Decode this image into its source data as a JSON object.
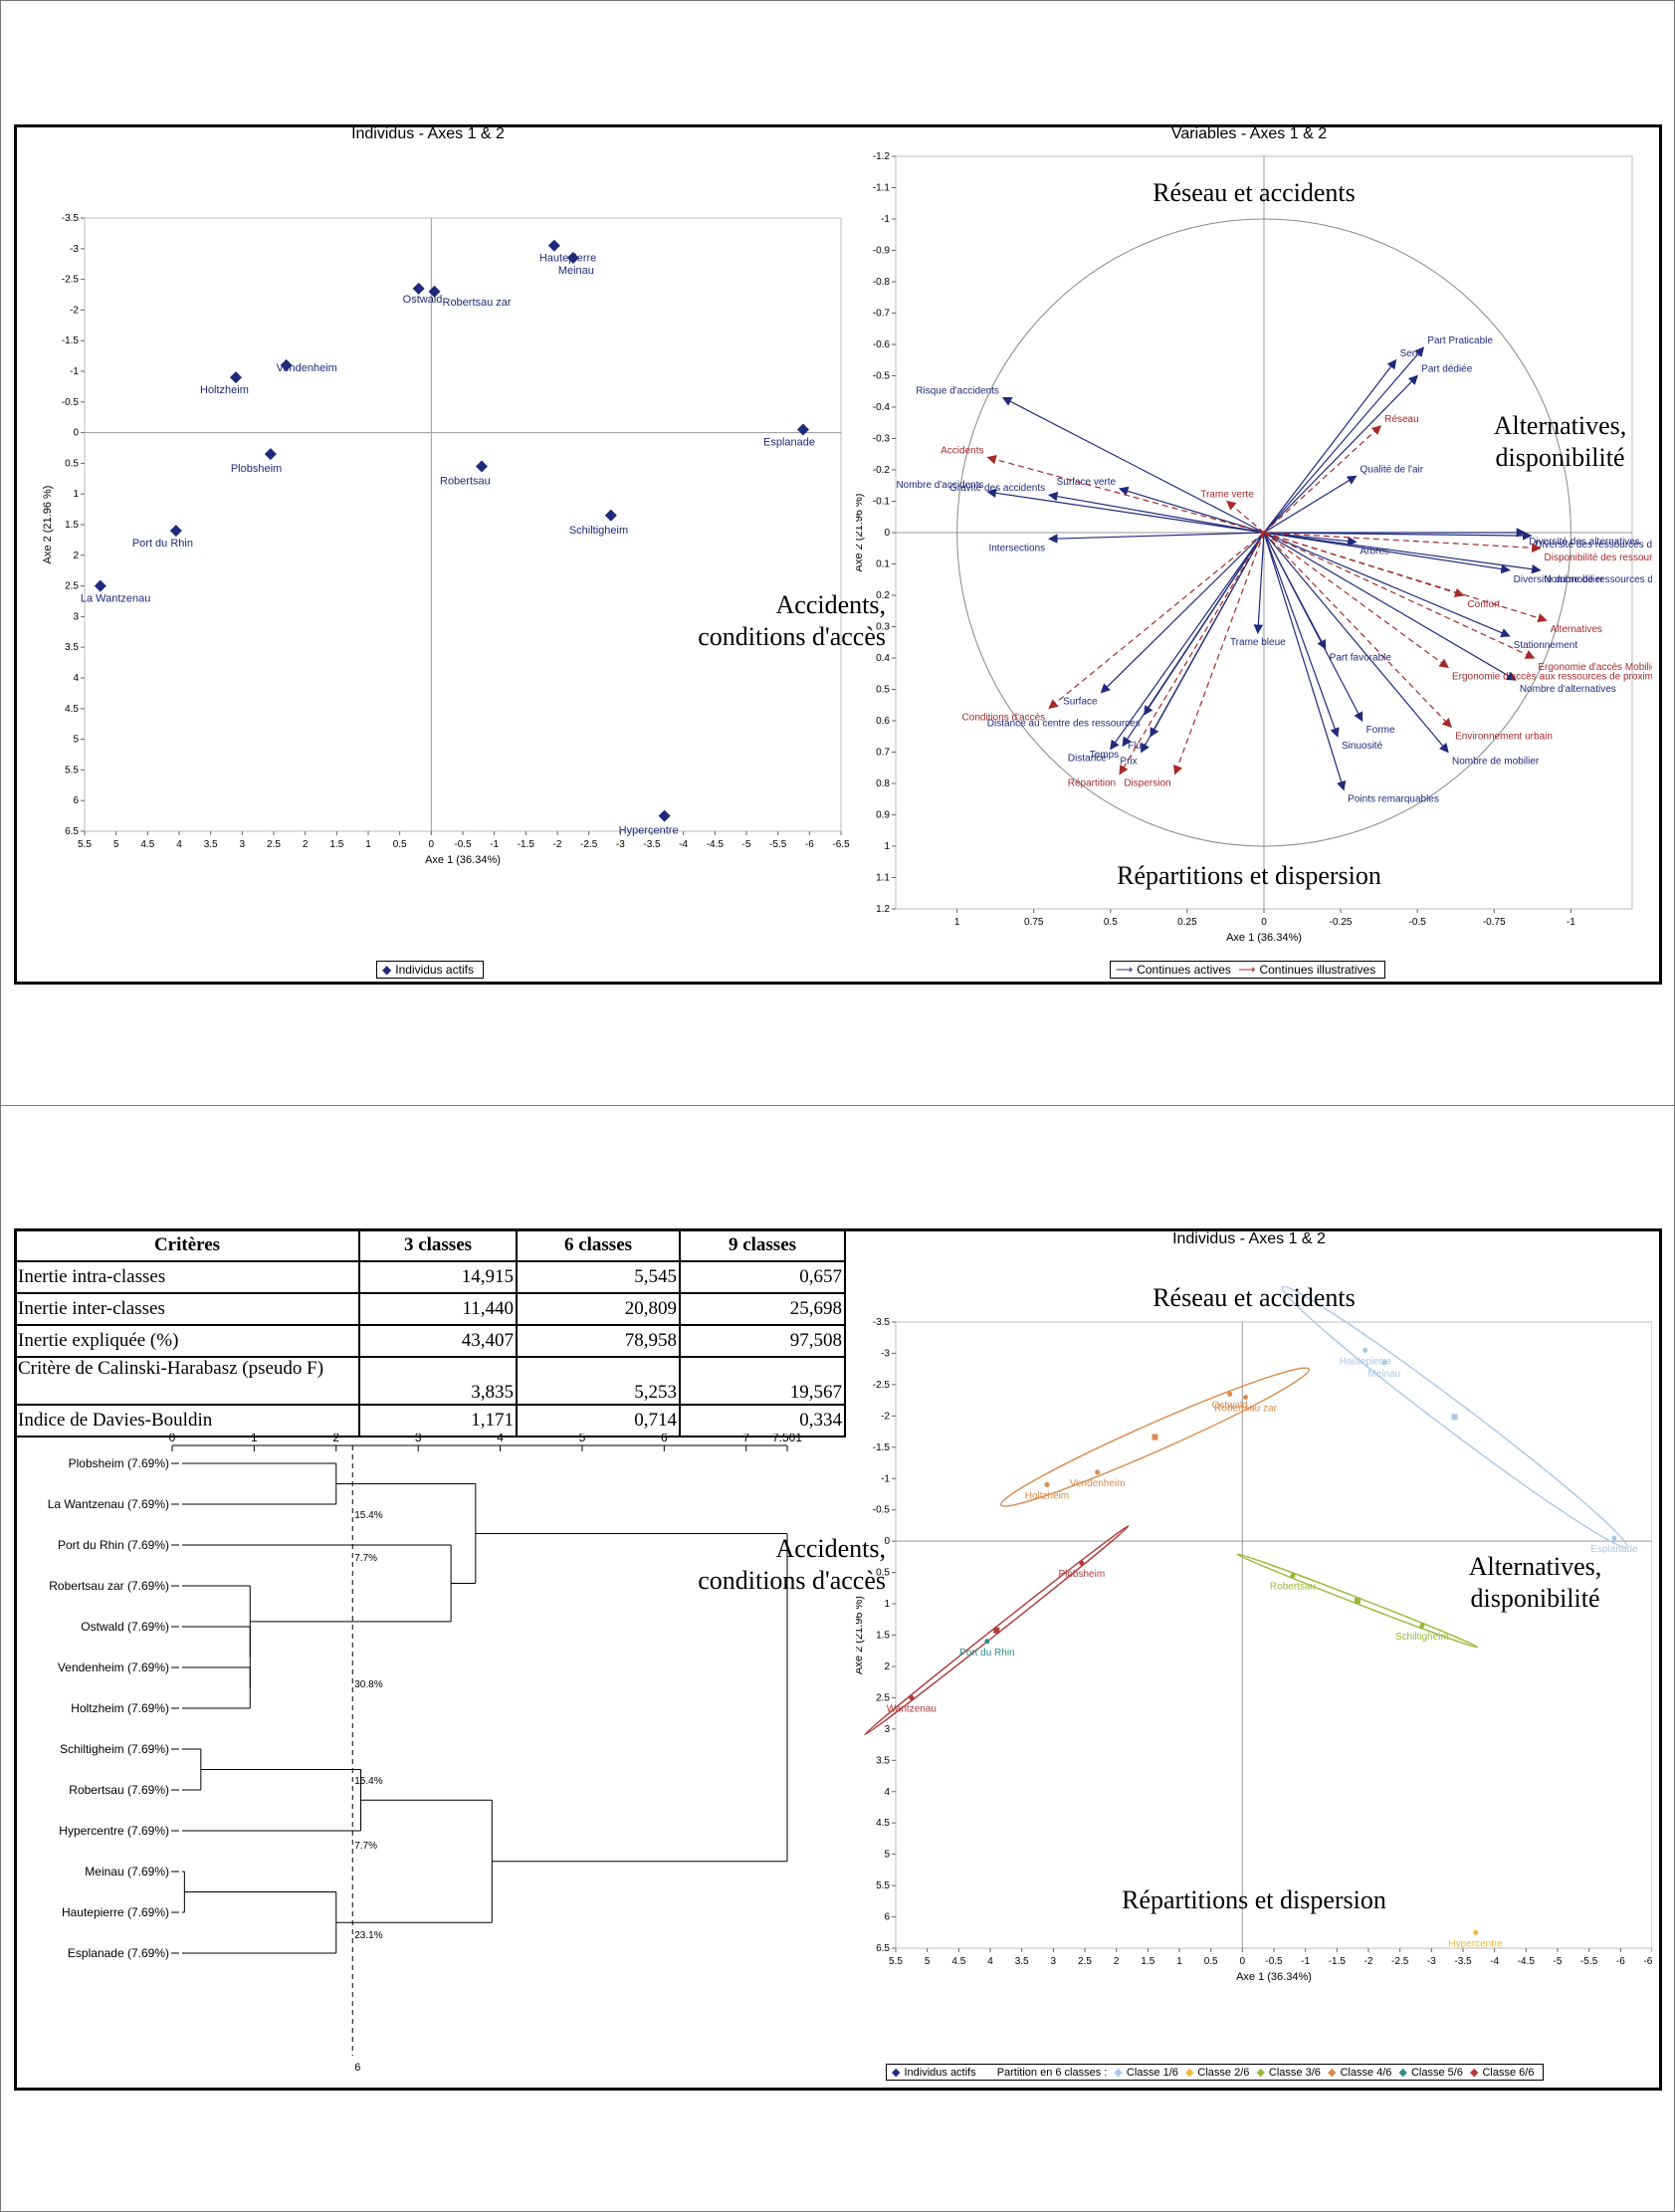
{
  "slide1": {
    "individus_chart": {
      "title": "Individus - Axes 1 & 2",
      "xlabel": "Axe 1 (36.34%)",
      "ylabel": "Axe 2 (21.96 %)",
      "legend": "Individus actifs",
      "type": "scatter",
      "x_ticks": [
        "5.5",
        "5",
        "4.5",
        "4",
        "3.5",
        "3",
        "2.5",
        "2",
        "1.5",
        "1",
        "0.5",
        "0",
        "-0.5",
        "-1",
        "-1.5",
        "-2",
        "-2.5",
        "-3",
        "-3.5",
        "-4",
        "-4.5",
        "-5",
        "-5.5",
        "-6",
        "-6.5"
      ],
      "y_ticks": [
        "-3.5",
        "-3",
        "-2.5",
        "-2",
        "-1.5",
        "-1",
        "-0.5",
        "0",
        "0.5",
        "1",
        "1.5",
        "2",
        "2.5",
        "3",
        "3.5",
        "4",
        "4.5",
        "5",
        "5.5",
        "6",
        "6.5"
      ],
      "points": [
        {
          "name": "Hautepierre",
          "x": -1.95,
          "y": -3.05
        },
        {
          "name": "Meinau",
          "x": -2.25,
          "y": -2.85
        },
        {
          "name": "Ostwald",
          "x": 0.2,
          "y": -2.35
        },
        {
          "name": "Robertsau zar",
          "x": -0.05,
          "y": -2.3
        },
        {
          "name": "Vendenheim",
          "x": 2.3,
          "y": -1.1
        },
        {
          "name": "Holtzheim",
          "x": 3.1,
          "y": -0.9
        },
        {
          "name": "Esplanade",
          "x": -5.9,
          "y": -0.05
        },
        {
          "name": "Plobsheim",
          "x": 2.55,
          "y": 0.35
        },
        {
          "name": "Robertsau",
          "x": -0.8,
          "y": 0.55
        },
        {
          "name": "Schiltigheim",
          "x": -2.85,
          "y": 1.35
        },
        {
          "name": "Port du Rhin",
          "x": 4.05,
          "y": 1.6
        },
        {
          "name": "La Wantzenau",
          "x": 5.25,
          "y": 2.5
        },
        {
          "name": "Hypercentre",
          "x": -3.7,
          "y": 6.25
        }
      ]
    },
    "variables_chart": {
      "title": "Variables - Axes 1 & 2",
      "xlabel": "Axe 1 (36.34%)",
      "ylabel": "Axe 2 (21.96 %)",
      "legend_active": "Continues actives",
      "legend_illus": "Continues illustratives",
      "type": "scatter",
      "x_ticks": [
        "1",
        "0.75",
        "0.5",
        "0.25",
        "0",
        "-0.25",
        "-0.5",
        "-0.75",
        "-1"
      ],
      "y_ticks": [
        "-1.2",
        "-1.1",
        "-1",
        "-0.9",
        "-0.8",
        "-0.7",
        "-0.6",
        "-0.5",
        "-0.4",
        "-0.3",
        "-0.2",
        "-0.1",
        "0",
        "0.1",
        "0.2",
        "0.3",
        "0.4",
        "0.5",
        "0.6",
        "0.7",
        "0.8",
        "0.9",
        "1",
        "1.1",
        "1.2"
      ],
      "active": [
        {
          "name": "Sens",
          "x": -0.43,
          "y": -0.55
        },
        {
          "name": "Part Praticable",
          "x": -0.52,
          "y": -0.59
        },
        {
          "name": "Part dédiée",
          "x": -0.5,
          "y": -0.5
        },
        {
          "name": "Qualité de l'air",
          "x": -0.3,
          "y": -0.18
        },
        {
          "name": "Risque d'accidents",
          "x": 0.85,
          "y": -0.43
        },
        {
          "name": "Surface verte",
          "x": 0.47,
          "y": -0.14
        },
        {
          "name": "Gravité des accidents",
          "x": 0.7,
          "y": -0.12
        },
        {
          "name": "Nombre d'accidents",
          "x": 0.9,
          "y": -0.13
        },
        {
          "name": "Intersections",
          "x": 0.7,
          "y": 0.02
        },
        {
          "name": "Diversité des alternatives",
          "x": -0.85,
          "y": 0.0
        },
        {
          "name": "Diversité des ressources de prox",
          "x": -0.87,
          "y": 0.01
        },
        {
          "name": "Nombre de ressources de proximité",
          "x": -0.9,
          "y": 0.12
        },
        {
          "name": "Diversité du mobilier",
          "x": -0.8,
          "y": 0.12
        },
        {
          "name": "Arbres",
          "x": -0.3,
          "y": 0.03
        },
        {
          "name": "Trame bleue",
          "x": 0.02,
          "y": 0.32
        },
        {
          "name": "Part favorable",
          "x": -0.2,
          "y": 0.37
        },
        {
          "name": "Stationnement",
          "x": -0.8,
          "y": 0.33
        },
        {
          "name": "Nombre d'alternatives",
          "x": -0.82,
          "y": 0.47
        },
        {
          "name": "Forme",
          "x": -0.32,
          "y": 0.6
        },
        {
          "name": "Sinuosité",
          "x": -0.24,
          "y": 0.65
        },
        {
          "name": "Nombre de mobilier",
          "x": -0.6,
          "y": 0.7
        },
        {
          "name": "Points remarquables",
          "x": -0.26,
          "y": 0.82
        },
        {
          "name": "Surface",
          "x": 0.53,
          "y": 0.51
        },
        {
          "name": "Distance au centre des ressources",
          "x": 0.39,
          "y": 0.58
        },
        {
          "name": "Temps",
          "x": 0.46,
          "y": 0.68
        },
        {
          "name": "Distance",
          "x": 0.5,
          "y": 0.69
        },
        {
          "name": "Prix",
          "x": 0.4,
          "y": 0.7
        },
        {
          "name": "Flux",
          "x": 0.37,
          "y": 0.65
        }
      ],
      "illustrative": [
        {
          "name": "Réseau",
          "x": -0.38,
          "y": -0.34
        },
        {
          "name": "Accidents",
          "x": 0.9,
          "y": -0.24
        },
        {
          "name": "Trame verte",
          "x": 0.12,
          "y": -0.1
        },
        {
          "name": "Disponibilité des ressources de p",
          "x": -0.9,
          "y": 0.05
        },
        {
          "name": "Confort",
          "x": -0.65,
          "y": 0.2
        },
        {
          "name": "Alternatives",
          "x": -0.92,
          "y": 0.28
        },
        {
          "name": "Ergonomie d'accès Mobilier",
          "x": -0.88,
          "y": 0.4
        },
        {
          "name": "Ergonomie d'accès aux ressources de proximité",
          "x": -0.6,
          "y": 0.43
        },
        {
          "name": "Environnement urbain",
          "x": -0.61,
          "y": 0.62
        },
        {
          "name": "Conditions d'accès",
          "x": 0.7,
          "y": 0.56
        },
        {
          "name": "Répartition",
          "x": 0.47,
          "y": 0.77
        },
        {
          "name": "Dispersion",
          "x": 0.29,
          "y": 0.77
        }
      ]
    },
    "annotations": {
      "reseau": "Réseau et accidents",
      "alternatives": "Alternatives, disponibilité",
      "accidents": "Accidents, conditions d'accès",
      "repartitions": "Répartitions et dispersion"
    }
  },
  "slide2": {
    "table": {
      "headers": [
        "Critères",
        "3 classes",
        "6 classes",
        "9 classes"
      ],
      "rows": [
        [
          "Inertie intra-classes",
          "14,915",
          "5,545",
          "0,657"
        ],
        [
          "Inertie inter-classes",
          "11,440",
          "20,809",
          "25,698"
        ],
        [
          "Inertie expliquée (%)",
          "43,407",
          "78,958",
          "97,508"
        ],
        [
          "Critère de Calinski-Harabasz (pseudo F)",
          "3,835",
          "5,253",
          "19,567"
        ],
        [
          "Indice de Davies-Bouldin",
          "1,171",
          "0,714",
          "0,334"
        ]
      ]
    },
    "dendrogram": {
      "scale_ticks": [
        "0",
        "1",
        "2",
        "3",
        "4",
        "5",
        "6",
        "7",
        "7.501"
      ],
      "cut_label": "6",
      "leaves": [
        "Plobsheim (7.69%)",
        "La Wantzenau (7.69%)",
        "Port du Rhin (7.69%)",
        "Robertsau zar (7.69%)",
        "Ostwald (7.69%)",
        "Vendenheim (7.69%)",
        "Holtzheim (7.69%)",
        "Schiltigheim (7.69%)",
        "Robertsau (7.69%)",
        "Hypercentre (7.69%)",
        "Meinau (7.69%)",
        "Hautepierre (7.69%)",
        "Esplanade (7.69%)"
      ],
      "cluster_pcts": [
        "15.4%",
        "7.7%",
        "30.8%",
        "15.4%",
        "7.7%",
        "23.1%"
      ]
    },
    "classes_chart": {
      "title": "Individus - Axes 1 & 2",
      "xlabel": "Axe 1 (36.34%)",
      "ylabel": "Axe 2 (21.96 %)",
      "type": "scatter",
      "legend": {
        "actifs": "Individus actifs",
        "partition": "Partition en 6 classes :",
        "classes": [
          "Classe 1/6",
          "Classe 2/6",
          "Classe 3/6",
          "Classe 4/6",
          "Classe 5/6",
          "Classe 6/6"
        ]
      },
      "class_colors": [
        "#a9c8e8",
        "#f0b93a",
        "#9ab83a",
        "#d98a4e",
        "#2e8a8a",
        "#b03a3a"
      ],
      "x_ticks": [
        "5.5",
        "5",
        "4.5",
        "4",
        "3.5",
        "3",
        "2.5",
        "2",
        "1.5",
        "1",
        "0.5",
        "0",
        "-0.5",
        "-1",
        "-1.5",
        "-2",
        "-2.5",
        "-3",
        "-3.5",
        "-4",
        "-4.5",
        "-5",
        "-5.5",
        "-6",
        "-6.5"
      ],
      "y_ticks": [
        "-3.5",
        "-3",
        "-2.5",
        "-2",
        "-1.5",
        "-1",
        "-0.5",
        "0",
        "0.5",
        "1",
        "1.5",
        "2",
        "2.5",
        "3",
        "3.5",
        "4",
        "4.5",
        "5",
        "5.5",
        "6",
        "6.5"
      ],
      "points": [
        {
          "name": "Hautepierre",
          "x": -1.95,
          "y": -3.05,
          "cls": 0
        },
        {
          "name": "Meinau",
          "x": -2.25,
          "y": -2.85,
          "cls": 0
        },
        {
          "name": "Esplanade",
          "x": -5.9,
          "y": -0.05,
          "cls": 0
        },
        {
          "name": "Hypercentre",
          "x": -3.7,
          "y": 6.25,
          "cls": 1
        },
        {
          "name": "Robertsau",
          "x": -0.8,
          "y": 0.55,
          "cls": 2
        },
        {
          "name": "Schiltigheim",
          "x": -2.85,
          "y": 1.35,
          "cls": 2
        },
        {
          "name": "Ostwald",
          "x": 0.2,
          "y": -2.35,
          "cls": 3
        },
        {
          "name": "Robertsau zar",
          "x": -0.05,
          "y": -2.3,
          "cls": 3
        },
        {
          "name": "Vendenheim",
          "x": 2.3,
          "y": -1.1,
          "cls": 3
        },
        {
          "name": "Holtzheim",
          "x": 3.1,
          "y": -0.9,
          "cls": 3
        },
        {
          "name": "Port du Rhin",
          "x": 4.05,
          "y": 1.6,
          "cls": 4
        },
        {
          "name": "Plobsheim",
          "x": 2.55,
          "y": 0.35,
          "cls": 5
        },
        {
          "name": "Wantzenau",
          "x": 5.25,
          "y": 2.5,
          "cls": 5
        }
      ]
    },
    "annotations": {
      "reseau": "Réseau et accidents",
      "alternatives": "Alternatives, disponibilité",
      "accidents": "Accidents, conditions d'accès",
      "repartitions": "Répartitions et dispersion"
    }
  }
}
